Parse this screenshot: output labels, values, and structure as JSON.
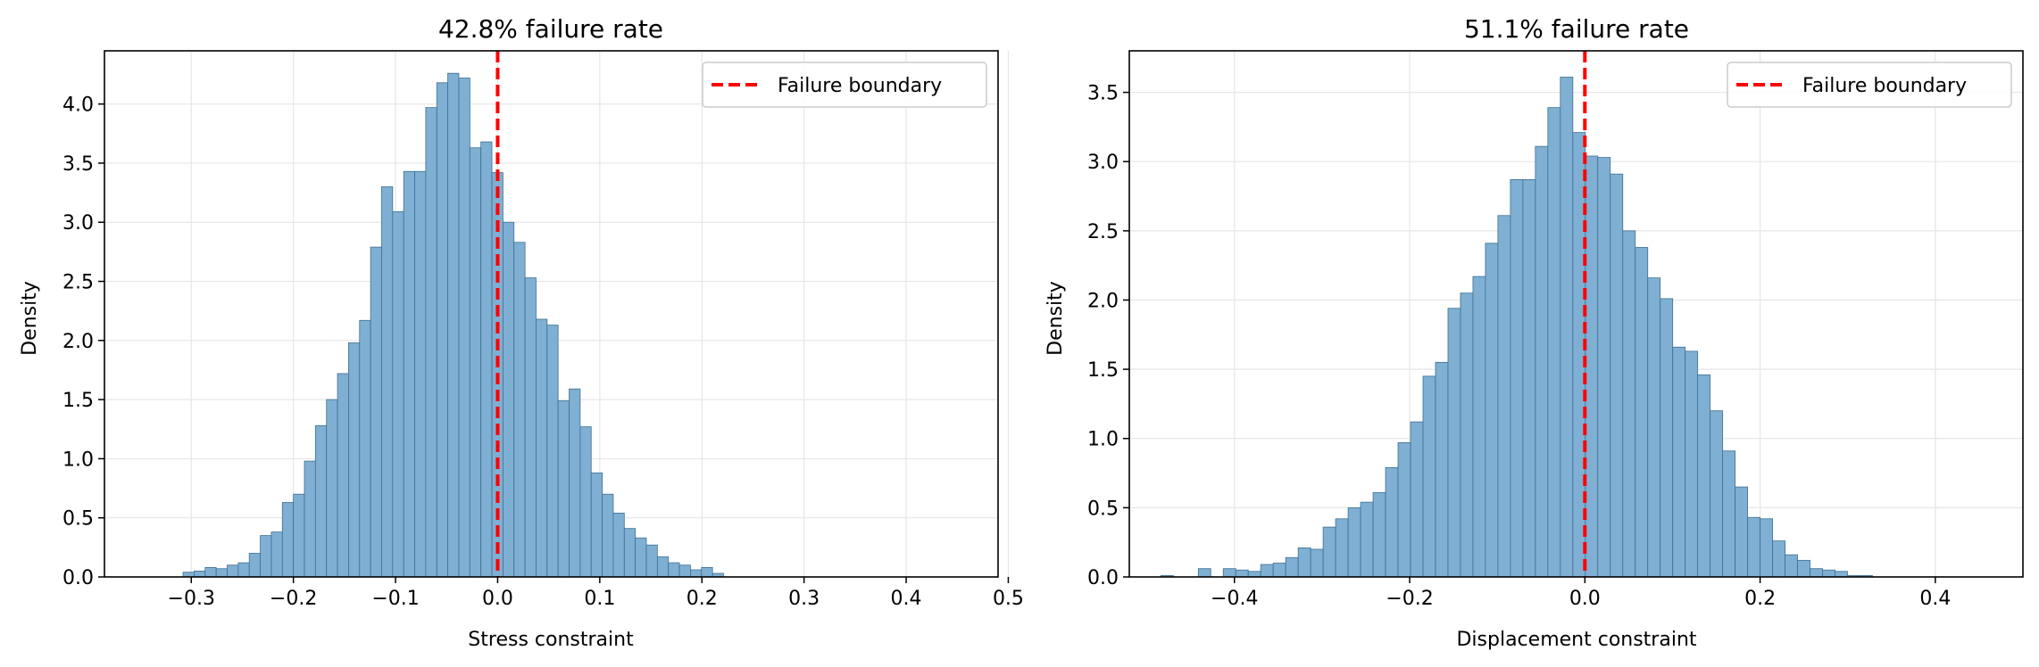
{
  "colors": {
    "bar_fill": "#7fb0d3",
    "bar_edge": "#3d6f92",
    "boundary": "#ff0000",
    "grid": "#e6e6e6",
    "axis": "#000000"
  },
  "chart_data": [
    {
      "type": "bar",
      "title": "42.8% failure rate",
      "xlabel": "Stress constraint",
      "ylabel": "Density",
      "xlim": [
        -0.385,
        0.49
      ],
      "ylim": [
        0,
        4.45
      ],
      "xticks": [
        -0.3,
        -0.2,
        -0.1,
        0.0,
        0.1,
        0.2,
        0.3,
        0.4,
        0.5
      ],
      "xtick_labels": [
        "−0.3",
        "−0.2",
        "−0.1",
        "0.0",
        "0.1",
        "0.2",
        "0.3",
        "0.4",
        "0.5"
      ],
      "yticks": [
        0,
        0.5,
        1.0,
        1.5,
        2.0,
        2.5,
        3.0,
        3.5,
        4.0
      ],
      "ytick_labels": [
        "0.0",
        "0.5",
        "1.0",
        "1.5",
        "2.0",
        "2.5",
        "3.0",
        "3.5",
        "4.0"
      ],
      "grid": true,
      "legend": {
        "position": "top-right",
        "entries": [
          "Failure boundary"
        ]
      },
      "boundary_x": 0.0,
      "bin_start": -0.308,
      "bin_width": 0.0108,
      "values": [
        0.04,
        0.05,
        0.08,
        0.07,
        0.1,
        0.12,
        0.2,
        0.35,
        0.38,
        0.63,
        0.7,
        0.98,
        1.28,
        1.5,
        1.72,
        1.98,
        2.17,
        2.79,
        3.3,
        3.09,
        3.43,
        3.43,
        3.97,
        4.18,
        4.26,
        4.22,
        3.63,
        3.68,
        3.42,
        3.0,
        2.83,
        2.53,
        2.18,
        2.13,
        1.49,
        1.59,
        1.27,
        0.88,
        0.7,
        0.54,
        0.41,
        0.33,
        0.27,
        0.17,
        0.12,
        0.1,
        0.06,
        0.08,
        0.03
      ]
    },
    {
      "type": "bar",
      "title": "51.1% failure rate",
      "xlabel": "Displacement constraint",
      "ylabel": "Density",
      "xlim": [
        -0.52,
        0.5
      ],
      "ylim": [
        0,
        3.8
      ],
      "xticks": [
        -0.4,
        -0.2,
        0.0,
        0.2,
        0.4
      ],
      "xtick_labels": [
        "−0.4",
        "−0.2",
        "0.0",
        "0.2",
        "0.4"
      ],
      "yticks": [
        0,
        0.5,
        1.0,
        1.5,
        2.0,
        2.5,
        3.0,
        3.5
      ],
      "ytick_labels": [
        "0.0",
        "0.5",
        "1.0",
        "1.5",
        "2.0",
        "2.5",
        "3.0",
        "3.5"
      ],
      "grid": true,
      "legend": {
        "position": "top-right",
        "entries": [
          "Failure boundary"
        ]
      },
      "boundary_x": 0.0,
      "bin_start": -0.484,
      "bin_width": 0.01425,
      "values": [
        0.01,
        0.0,
        0.0,
        0.06,
        0.0,
        0.06,
        0.05,
        0.04,
        0.09,
        0.1,
        0.14,
        0.21,
        0.2,
        0.36,
        0.42,
        0.5,
        0.54,
        0.61,
        0.79,
        0.97,
        1.12,
        1.45,
        1.55,
        1.94,
        2.05,
        2.17,
        2.41,
        2.61,
        2.87,
        2.87,
        3.11,
        3.39,
        3.61,
        3.21,
        3.04,
        3.03,
        2.91,
        2.5,
        2.38,
        2.16,
        2.01,
        1.66,
        1.63,
        1.46,
        1.2,
        0.91,
        0.65,
        0.43,
        0.42,
        0.26,
        0.16,
        0.12,
        0.06,
        0.05,
        0.04,
        0.01,
        0.01
      ]
    }
  ]
}
